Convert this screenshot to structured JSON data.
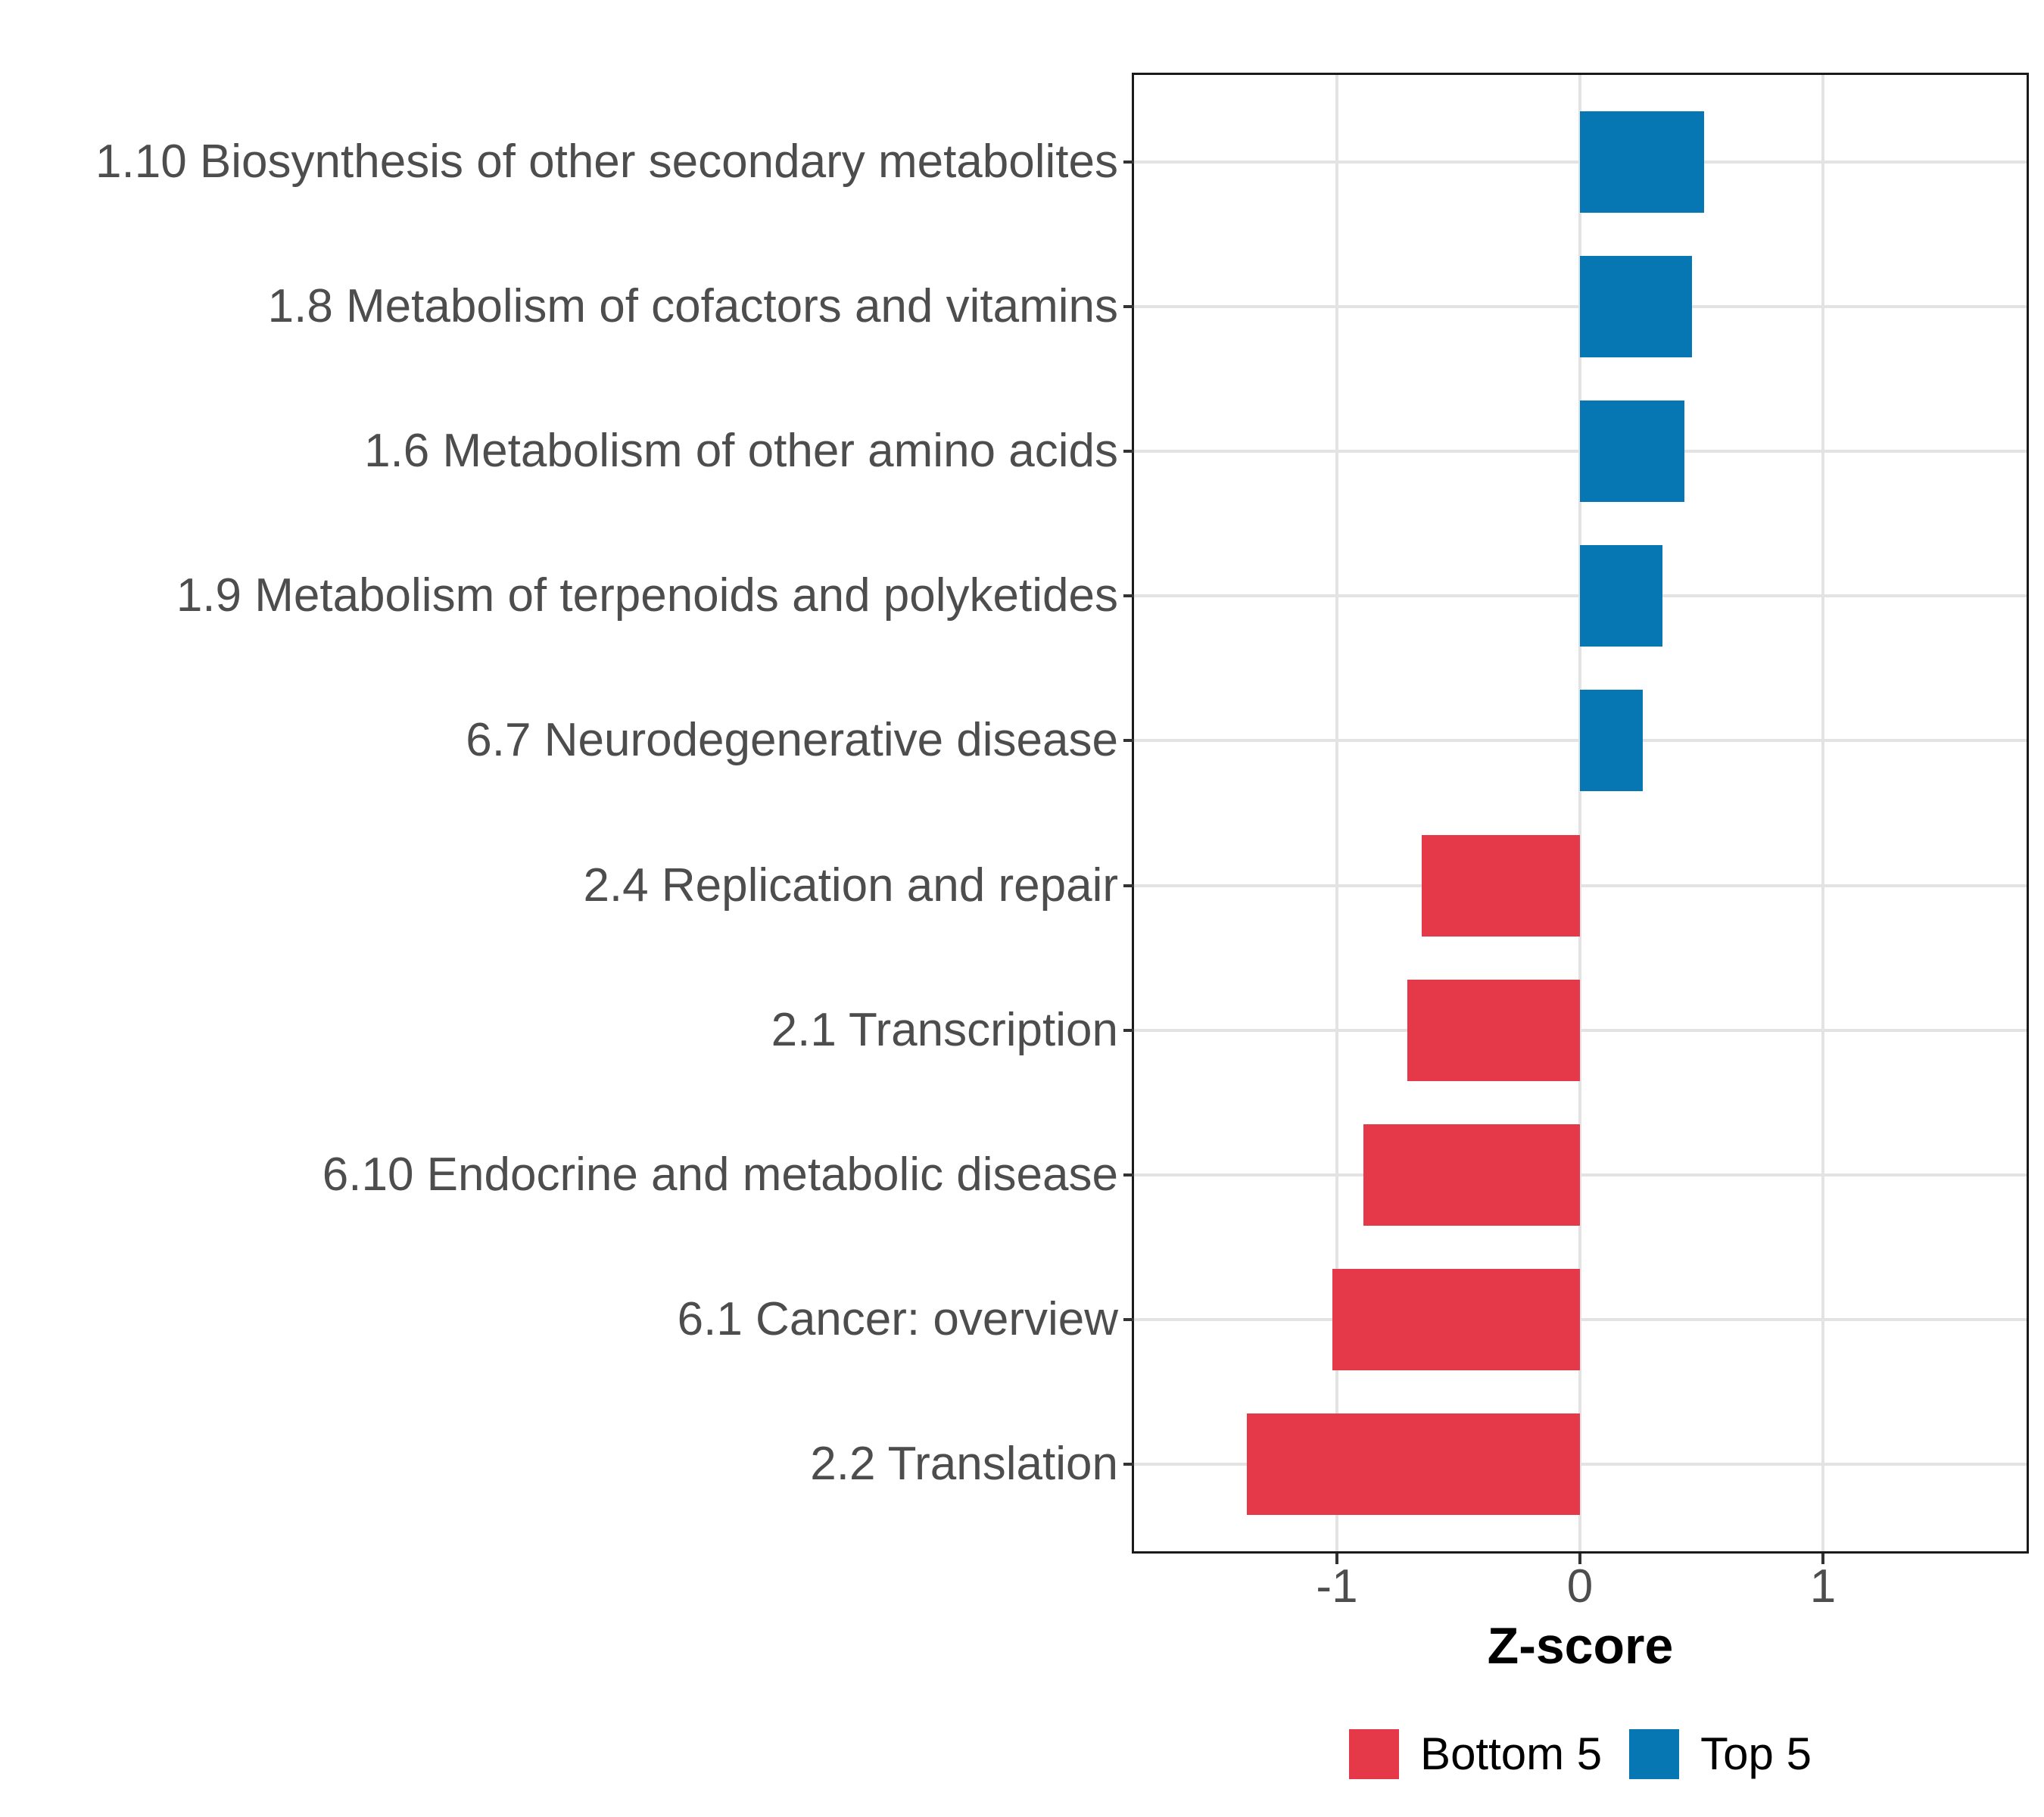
{
  "chart_data": {
    "type": "bar",
    "orientation": "horizontal",
    "title": "",
    "xlabel": "Z-score",
    "ylabel": "",
    "xlim": [
      -1.84,
      1.84
    ],
    "grid": "major-only",
    "legend_position": "bottom-center",
    "x_ticks": [
      {
        "value": -1,
        "label": "-1"
      },
      {
        "value": 0,
        "label": "0"
      },
      {
        "value": 1,
        "label": "1"
      }
    ],
    "categories": [
      "1.10 Biosynthesis of other secondary metabolites",
      "1.8 Metabolism of cofactors and vitamins",
      "1.6 Metabolism of other amino acids",
      "1.9 Metabolism of terpenoids and polyketides",
      "6.7 Neurodegenerative disease",
      "2.4 Replication and repair",
      "2.1 Transcription",
      "6.10 Endocrine and metabolic disease",
      "6.1 Cancer: overview",
      "2.2 Translation"
    ],
    "values": [
      0.51,
      0.46,
      0.43,
      0.34,
      0.26,
      -0.65,
      -0.71,
      -0.89,
      -1.02,
      -1.37
    ],
    "groups": [
      "Top 5",
      "Top 5",
      "Top 5",
      "Top 5",
      "Top 5",
      "Bottom 5",
      "Bottom 5",
      "Bottom 5",
      "Bottom 5",
      "Bottom 5"
    ],
    "series": [
      {
        "name": "Bottom 5",
        "color": "#E5394A"
      },
      {
        "name": "Top 5",
        "color": "#0777B4"
      }
    ]
  },
  "styles": {
    "grid_color": "#E3E3E3",
    "panel_border_color": "#1A1A1A",
    "axis_text_color": "#4D4D4D",
    "tick_color": "#333333",
    "background_color": "#FFFFFF"
  }
}
